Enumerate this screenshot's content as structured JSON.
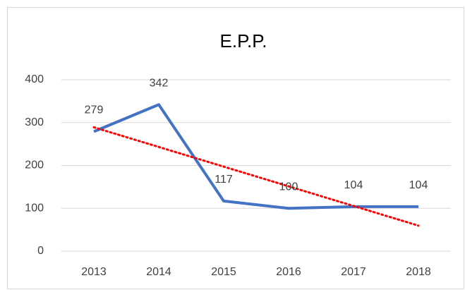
{
  "chart_data": {
    "type": "line",
    "title": "E.P.P.",
    "categories": [
      "2013",
      "2014",
      "2015",
      "2016",
      "2017",
      "2018"
    ],
    "series": [
      {
        "name": "E.P.P.",
        "color": "#4472c4",
        "values": [
          279,
          342,
          117,
          100,
          104,
          104
        ]
      }
    ],
    "ylim": [
      0,
      400
    ],
    "yticks": [
      0,
      100,
      200,
      300,
      400
    ],
    "grid": true,
    "data_labels": true,
    "trendline": {
      "type": "linear",
      "color": "#ff0000"
    }
  }
}
